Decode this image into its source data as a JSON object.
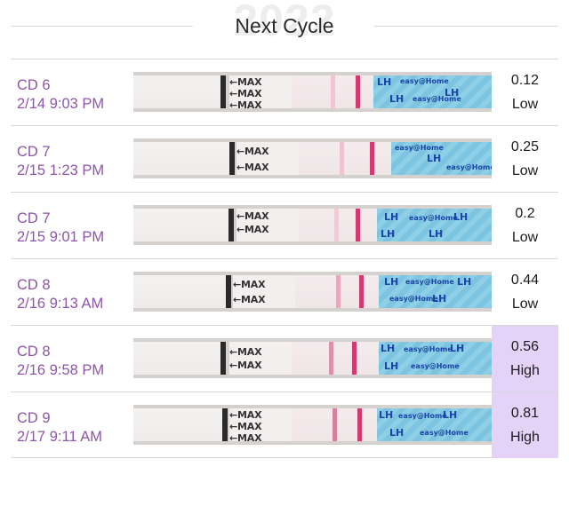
{
  "header": {
    "year": "2022",
    "title": "Next Cycle"
  },
  "strip_text": {
    "max_label": "←MAX",
    "brand_lh": "LH",
    "brand_name": "easy@Home"
  },
  "colors": {
    "label_purple": "#8e55a8",
    "high_bg": "#e5d2f7",
    "control_line": "#d23a73"
  },
  "entries": [
    {
      "day": "CD 6",
      "datetime": "2/14 9:03 PM",
      "value": "0.12",
      "level": "Low"
    },
    {
      "day": "CD 7",
      "datetime": "2/15 1:23 PM",
      "value": "0.25",
      "level": "Low"
    },
    {
      "day": "CD 7",
      "datetime": "2/15 9:01 PM",
      "value": "0.2",
      "level": "Low"
    },
    {
      "day": "CD 8",
      "datetime": "2/16 9:13 AM",
      "value": "0.44",
      "level": "Low"
    },
    {
      "day": "CD 8",
      "datetime": "2/16 9:58 PM",
      "value": "0.56",
      "level": "High"
    },
    {
      "day": "CD 9",
      "datetime": "2/17 9:11 AM",
      "value": "0.81",
      "level": "High"
    }
  ]
}
